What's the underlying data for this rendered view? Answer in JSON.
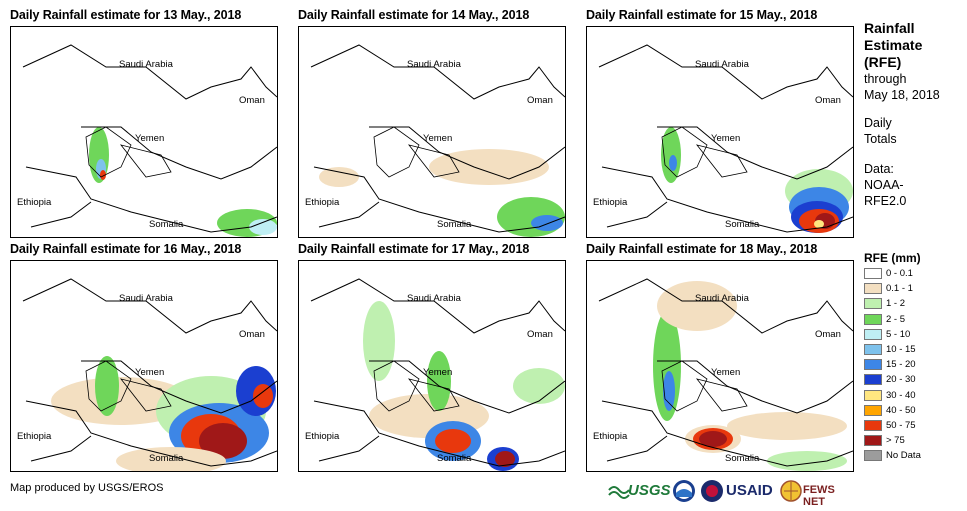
{
  "panels": [
    {
      "title": "Daily Rainfall estimate for 13 May., 2018"
    },
    {
      "title": "Daily Rainfall estimate for 14 May., 2018"
    },
    {
      "title": "Daily Rainfall estimate for 15 May., 2018"
    },
    {
      "title": "Daily Rainfall estimate for 16 May., 2018"
    },
    {
      "title": "Daily Rainfall estimate for 17 May., 2018"
    },
    {
      "title": "Daily Rainfall estimate for 18 May., 2018"
    }
  ],
  "map_labels": {
    "saudi": "Saudi Arabia",
    "oman": "Oman",
    "yemen": "Yemen",
    "ethiopia": "Ethiopia",
    "somalia": "Somalia"
  },
  "side": {
    "title_1": "Rainfall",
    "title_2": "Estimate",
    "title_3": "(RFE)",
    "through": "through",
    "date": "May 18, 2018",
    "daily_1": "Daily",
    "daily_2": "Totals",
    "data_1": "Data:",
    "data_2": "NOAA-",
    "data_3": "RFE2.0"
  },
  "legend": {
    "title": "RFE (mm)",
    "items": [
      {
        "label": "0 - 0.1",
        "color": "#ffffff"
      },
      {
        "label": "0.1 - 1",
        "color": "#f3dfc1"
      },
      {
        "label": "1 - 2",
        "color": "#bff0b0"
      },
      {
        "label": "2 - 5",
        "color": "#6fd65a"
      },
      {
        "label": "5 - 10",
        "color": "#bfeff4"
      },
      {
        "label": "10 - 15",
        "color": "#7ec2ec"
      },
      {
        "label": "15 - 20",
        "color": "#3d86e6"
      },
      {
        "label": "20 - 30",
        "color": "#1b3fd0"
      },
      {
        "label": "30 - 40",
        "color": "#ffe680"
      },
      {
        "label": "40 - 50",
        "color": "#ffa500"
      },
      {
        "label": "50 - 75",
        "color": "#e8380d"
      },
      {
        "label": "> 75",
        "color": "#a01818"
      },
      {
        "label": "No Data",
        "color": "#9c9c9c"
      }
    ]
  },
  "credit": "Map produced by USGS/EROS",
  "logos": {
    "usgs": "USGS",
    "usaid": "USAID",
    "fews": "FEWS NET"
  }
}
